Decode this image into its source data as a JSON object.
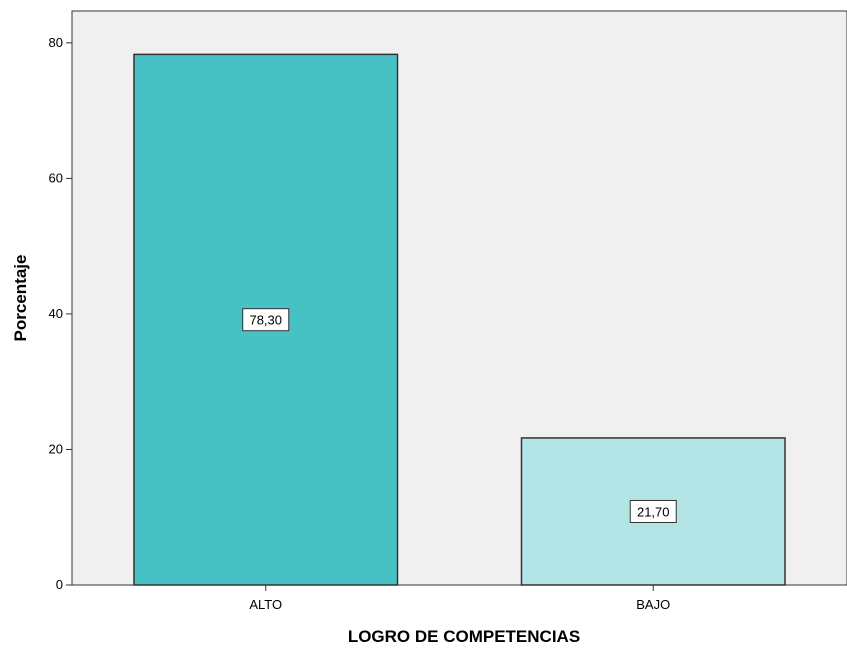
{
  "chart_data": {
    "type": "bar",
    "categories": [
      "ALTO",
      "BAJO"
    ],
    "values": [
      78.3,
      21.7
    ],
    "data_labels": [
      "78,30",
      "21,70"
    ],
    "xlabel": "LOGRO DE COMPETENCIAS",
    "ylabel": "Porcentaje",
    "ylim": [
      0,
      84.7
    ],
    "yticks": [
      0,
      20,
      40,
      60,
      80
    ],
    "grid": false,
    "colors": {
      "plot_background": "#f0f0f0",
      "bars": [
        "#48c1c4",
        "#b3e5e6"
      ],
      "bar_outline": "#333333",
      "axis": "#333333"
    }
  }
}
